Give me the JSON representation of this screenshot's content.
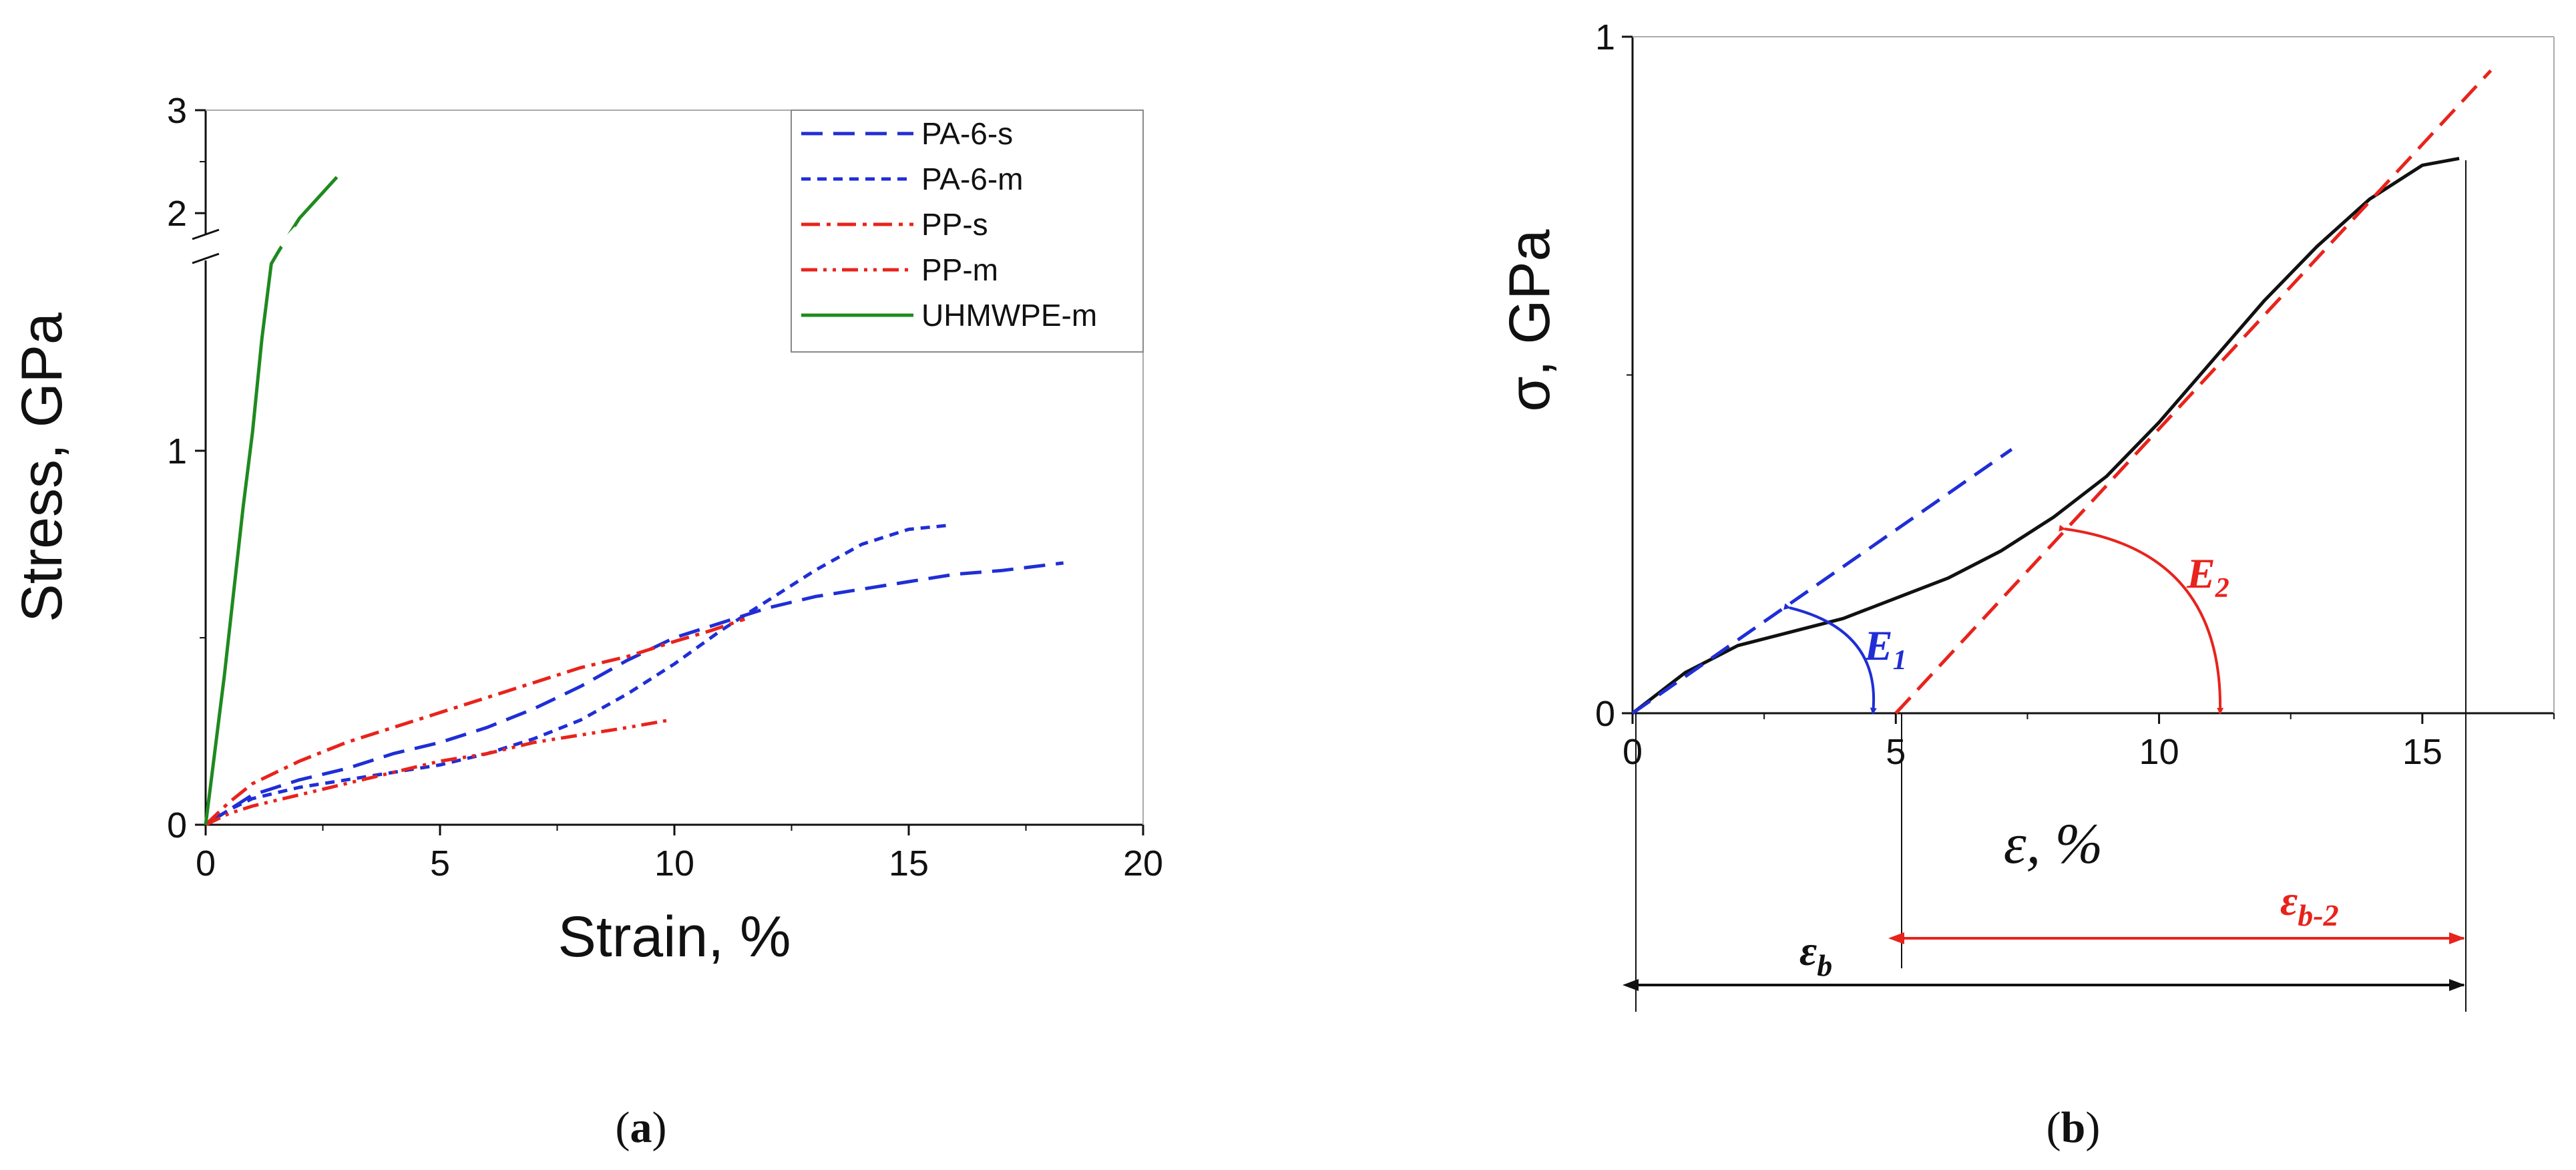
{
  "colors": {
    "blue": "#1f2ed6",
    "red": "#e8231c",
    "green": "#1e8a1e",
    "black": "#111111"
  },
  "chart_data": [
    {
      "id": "a",
      "type": "line",
      "panel_label": "a",
      "xlabel": "Strain, %",
      "ylabel": "Stress, GPa",
      "xlim": [
        0,
        20
      ],
      "ylim_lower": [
        0,
        1.5
      ],
      "ylim_upper": [
        1.8,
        3
      ],
      "axis_break": true,
      "xticks": [
        "0",
        "5",
        "10",
        "15",
        "20"
      ],
      "yticks": [
        "0",
        "1",
        "2",
        "3"
      ],
      "legend_position": "top-right",
      "series": [
        {
          "name": "PA-6-s",
          "style": "dash",
          "color": "#1f2ed6",
          "x": [
            0,
            0.5,
            1,
            2,
            3,
            4,
            5,
            6,
            7,
            8,
            9,
            10,
            11,
            12,
            13,
            14,
            15,
            16,
            17,
            18.3
          ],
          "y": [
            0,
            0.04,
            0.08,
            0.12,
            0.15,
            0.19,
            0.22,
            0.26,
            0.31,
            0.37,
            0.44,
            0.5,
            0.54,
            0.58,
            0.61,
            0.63,
            0.65,
            0.67,
            0.68,
            0.7
          ]
        },
        {
          "name": "PA-6-m",
          "style": "short-dash",
          "color": "#1f2ed6",
          "x": [
            0,
            0.5,
            1,
            2,
            3,
            4,
            5,
            6,
            7,
            8,
            9,
            10,
            11,
            12,
            13,
            14,
            15,
            15.8
          ],
          "y": [
            0,
            0.04,
            0.07,
            0.1,
            0.12,
            0.14,
            0.16,
            0.19,
            0.23,
            0.28,
            0.35,
            0.43,
            0.52,
            0.6,
            0.68,
            0.75,
            0.79,
            0.8
          ]
        },
        {
          "name": "PP-s",
          "style": "dash-dot",
          "color": "#e8231c",
          "x": [
            0,
            0.5,
            1,
            2,
            3,
            4,
            5,
            6,
            7,
            8,
            9,
            10,
            10.8,
            11.5
          ],
          "y": [
            0,
            0.06,
            0.11,
            0.17,
            0.22,
            0.26,
            0.3,
            0.34,
            0.38,
            0.42,
            0.45,
            0.49,
            0.52,
            0.55
          ]
        },
        {
          "name": "PP-m",
          "style": "dash-dot-dot",
          "color": "#e8231c",
          "x": [
            0,
            0.5,
            1,
            2,
            3,
            4,
            5,
            6,
            7,
            8,
            9,
            9.9
          ],
          "y": [
            0,
            0.03,
            0.05,
            0.08,
            0.11,
            0.14,
            0.17,
            0.19,
            0.22,
            0.24,
            0.26,
            0.28
          ]
        },
        {
          "name": "UHMWPE-m",
          "style": "solid",
          "color": "#1e8a1e",
          "x": [
            0,
            0.4,
            0.8,
            1.0,
            1.2,
            1.4,
            1.55,
            2.0,
            2.4,
            2.8
          ],
          "y": [
            0,
            0.4,
            0.85,
            1.05,
            1.3,
            1.5,
            1.62,
            1.95,
            2.15,
            2.35
          ]
        }
      ]
    },
    {
      "id": "b",
      "type": "line",
      "panel_label": "b",
      "xlabel": "ε, %",
      "ylabel": "σ, GPa",
      "xlim": [
        0,
        17.5
      ],
      "ylim": [
        0,
        1
      ],
      "xticks": [
        "0",
        "5",
        "10",
        "15"
      ],
      "yticks": [
        "0",
        "1"
      ],
      "series": [
        {
          "name": "stress-strain curve",
          "style": "solid",
          "color": "#111111",
          "x": [
            0,
            1,
            2,
            3,
            4,
            5,
            6,
            7,
            8,
            9,
            10,
            11,
            12,
            13,
            14,
            15,
            15.7
          ],
          "y": [
            0,
            0.06,
            0.1,
            0.12,
            0.14,
            0.17,
            0.2,
            0.24,
            0.29,
            0.35,
            0.43,
            0.52,
            0.61,
            0.69,
            0.76,
            0.81,
            0.82
          ]
        },
        {
          "name": "E1 tangent",
          "style": "dash",
          "color": "#1f2ed6",
          "x": [
            0,
            7.2
          ],
          "y": [
            0,
            0.39
          ]
        },
        {
          "name": "E2 tangent",
          "style": "dash",
          "color": "#e8231c",
          "x": [
            5,
            16.3
          ],
          "y": [
            0,
            0.95
          ]
        }
      ],
      "annotations": {
        "e1_label": "E",
        "e1_sub": "1",
        "e2_label": "E",
        "e2_sub": "2",
        "eps_b": "ε",
        "eps_b_sub": "b",
        "eps_b2": "ε",
        "eps_b2_sub": "b-2"
      }
    }
  ]
}
